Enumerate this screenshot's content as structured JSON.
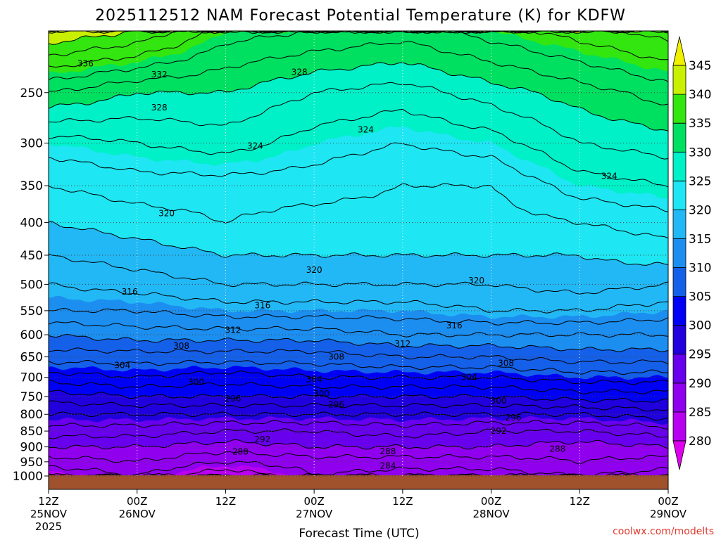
{
  "chart_data": {
    "type": "heatmap",
    "title": "2025112512 NAM Forecast Potential Temperature (K) for KDFW",
    "xlabel": "Forecast Time (UTC)",
    "ylabel": "",
    "y_scale": "log-pressure",
    "y_reversed": true,
    "ylim": [
      1000,
      200
    ],
    "y_ticks": [
      250,
      300,
      350,
      400,
      450,
      500,
      550,
      600,
      650,
      700,
      750,
      800,
      850,
      900,
      950,
      1000
    ],
    "x_hours": [
      0,
      84
    ],
    "x_ticks": [
      {
        "hour": 0,
        "time": "12Z",
        "date": "25NOV",
        "year": "2025"
      },
      {
        "hour": 12,
        "time": "00Z",
        "date": "26NOV",
        "year": ""
      },
      {
        "hour": 24,
        "time": "12Z",
        "date": "",
        "year": ""
      },
      {
        "hour": 36,
        "time": "00Z",
        "date": "27NOV",
        "year": ""
      },
      {
        "hour": 48,
        "time": "12Z",
        "date": "",
        "year": ""
      },
      {
        "hour": 60,
        "time": "00Z",
        "date": "28NOV",
        "year": ""
      },
      {
        "hour": 72,
        "time": "12Z",
        "date": "",
        "year": ""
      },
      {
        "hour": 84,
        "time": "00Z",
        "date": "29NOV",
        "year": ""
      }
    ],
    "grid": true,
    "colorbar": {
      "placement": "right",
      "labels": [
        "280",
        "285",
        "290",
        "295",
        "300",
        "305",
        "310",
        "315",
        "320",
        "325",
        "330",
        "335",
        "340",
        "345"
      ],
      "colors": [
        "#e000f0",
        "#b800f0",
        "#9000ee",
        "#6800ee",
        "#2000dd",
        "#0000f5",
        "#1560e8",
        "#1c8ef0",
        "#22b8f5",
        "#1ee6f2",
        "#00f0c8",
        "#00e060",
        "#33e610",
        "#c8f000",
        "#f0f000"
      ]
    },
    "contour_levels": [
      280,
      282,
      284,
      286,
      288,
      290,
      292,
      294,
      296,
      298,
      300,
      302,
      304,
      306,
      308,
      310,
      312,
      314,
      316,
      318,
      320,
      322,
      324,
      326,
      328,
      330,
      332,
      334,
      336,
      338,
      340,
      342,
      344
    ],
    "profile_pressures": [
      1000,
      950,
      900,
      850,
      800,
      750,
      700,
      650,
      600,
      550,
      500,
      450,
      400,
      350,
      300,
      250,
      200
    ],
    "profiles": [
      {
        "hour": 0,
        "theta": [
          284,
          287,
          290,
          293,
          296,
          299,
          303,
          307,
          310,
          314,
          316,
          318,
          320,
          322,
          325,
          332,
          342
        ]
      },
      {
        "hour": 12,
        "theta": [
          286,
          288,
          290,
          293,
          296,
          300,
          304,
          307,
          311,
          314,
          317,
          319,
          321,
          323,
          326,
          330,
          340
        ]
      },
      {
        "hour": 24,
        "theta": [
          282,
          286,
          289,
          292,
          296,
          300,
          303,
          307,
          311,
          315,
          318,
          320,
          322,
          323,
          327,
          330,
          335
        ]
      },
      {
        "hour": 36,
        "theta": [
          286,
          287,
          290,
          292,
          296,
          300,
          304,
          307,
          311,
          315,
          318,
          320,
          321,
          323,
          325,
          328,
          334
        ]
      },
      {
        "hour": 48,
        "theta": [
          285,
          287,
          290,
          293,
          296,
          300,
          304,
          308,
          312,
          315,
          318,
          320,
          321,
          322,
          324,
          327,
          333
        ]
      },
      {
        "hour": 60,
        "theta": [
          285,
          287,
          290,
          292,
          296,
          300,
          304,
          308,
          312,
          316,
          318,
          320,
          321,
          322,
          325,
          329,
          335
        ]
      },
      {
        "hour": 72,
        "theta": [
          286,
          288,
          289,
          292,
          296,
          301,
          305,
          309,
          312,
          316,
          319,
          320,
          322,
          325,
          328,
          331,
          337
        ]
      },
      {
        "hour": 84,
        "theta": [
          285,
          287,
          290,
          293,
          297,
          301,
          305,
          309,
          312,
          315,
          318,
          321,
          323,
          326,
          329,
          333,
          339
        ]
      }
    ],
    "contour_labels": [
      {
        "text": "336",
        "hour": 5,
        "p": 225
      },
      {
        "text": "332",
        "hour": 15,
        "p": 234
      },
      {
        "text": "328",
        "hour": 15,
        "p": 264
      },
      {
        "text": "328",
        "hour": 34,
        "p": 232
      },
      {
        "text": "324",
        "hour": 28,
        "p": 303
      },
      {
        "text": "324",
        "hour": 43,
        "p": 286
      },
      {
        "text": "324",
        "hour": 76,
        "p": 338
      },
      {
        "text": "320",
        "hour": 16,
        "p": 387
      },
      {
        "text": "320",
        "hour": 36,
        "p": 475
      },
      {
        "text": "320",
        "hour": 58,
        "p": 493
      },
      {
        "text": "316",
        "hour": 11,
        "p": 514
      },
      {
        "text": "316",
        "hour": 29,
        "p": 540
      },
      {
        "text": "316",
        "hour": 55,
        "p": 580
      },
      {
        "text": "312",
        "hour": 25,
        "p": 590
      },
      {
        "text": "312",
        "hour": 48,
        "p": 620
      },
      {
        "text": "308",
        "hour": 18,
        "p": 625
      },
      {
        "text": "308",
        "hour": 39,
        "p": 650
      },
      {
        "text": "308",
        "hour": 62,
        "p": 665
      },
      {
        "text": "304",
        "hour": 10,
        "p": 670
      },
      {
        "text": "304",
        "hour": 36,
        "p": 705
      },
      {
        "text": "304",
        "hour": 57,
        "p": 700
      },
      {
        "text": "300",
        "hour": 20,
        "p": 712
      },
      {
        "text": "300",
        "hour": 37,
        "p": 743
      },
      {
        "text": "300",
        "hour": 61,
        "p": 762
      },
      {
        "text": "296",
        "hour": 25,
        "p": 756
      },
      {
        "text": "296",
        "hour": 39,
        "p": 773
      },
      {
        "text": "296",
        "hour": 63,
        "p": 810
      },
      {
        "text": "292",
        "hour": 29,
        "p": 876
      },
      {
        "text": "292",
        "hour": 61,
        "p": 850
      },
      {
        "text": "288",
        "hour": 26,
        "p": 916
      },
      {
        "text": "288",
        "hour": 46,
        "p": 915
      },
      {
        "text": "288",
        "hour": 69,
        "p": 907
      },
      {
        "text": "284",
        "hour": 46,
        "p": 964
      }
    ]
  },
  "credit": "coolwx.com/modelts"
}
